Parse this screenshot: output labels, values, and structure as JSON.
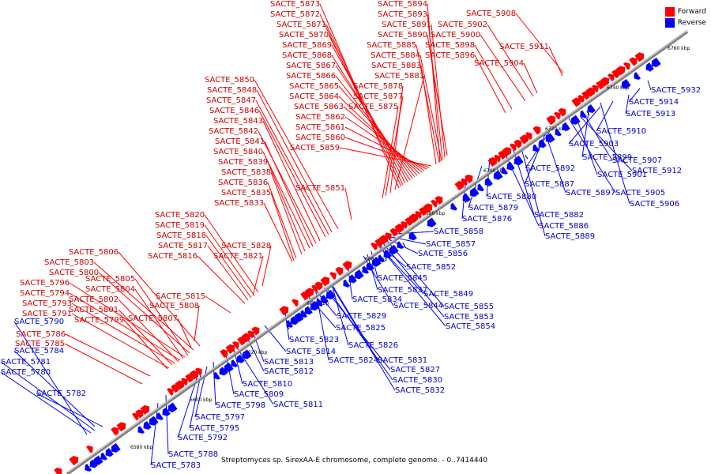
{
  "colors": {
    "forward": "#ff0000",
    "reverse": "#0000ff",
    "forward_label": "#cc0000",
    "reverse_label": "#0000cc",
    "axis": "#7f7f7f",
    "axis_highlight": "#d8d8d8"
  },
  "legend": {
    "forward": "Forward",
    "reverse": "Reverse"
  },
  "caption": "Streptomyces sp. SirexAA-E chromosome, complete genome. - 0..7414440",
  "axis_ticks": [
    "6580 kbp",
    "6600 kbp",
    "6620 kbp",
    "6640 kbp",
    "6660 kbp",
    "6680 kbp",
    "6700 kbp",
    "6720 kbp",
    "6740 kbp",
    "6760 kbp"
  ],
  "forward_genes": [
    "SACTE_5873",
    "SACTE_5872",
    "SACTE_5871",
    "SACTE_5870",
    "SACTE_5869",
    "SACTE_5868",
    "SACTE_5867",
    "SACTE_5866",
    "SACTE_5865",
    "SACTE_5864",
    "SACTE_5863",
    "SACTE_5862",
    "SACTE_5861",
    "SACTE_5860",
    "SACTE_5859",
    "SACTE_5894",
    "SACTE_5893",
    "SACTE_5891",
    "SACTE_5890",
    "SACTE_5885",
    "SACTE_5884",
    "SACTE_5883",
    "SACTE_5881",
    "SACTE_5878",
    "SACTE_5877",
    "SACTE_5875",
    "SACTE_5908",
    "SACTE_5902",
    "SACTE_5900",
    "SACTE_5898",
    "SACTE_5896",
    "SACTE_5911",
    "SACTE_5904",
    "SACTE_5850",
    "SACTE_5848",
    "SACTE_5847",
    "SACTE_5846",
    "SACTE_5843",
    "SACTE_5842",
    "SACTE_5841",
    "SACTE_5840",
    "SACTE_5839",
    "SACTE_5838",
    "SACTE_5836",
    "SACTE_5835",
    "SACTE_5833",
    "SACTE_5851",
    "SACTE_5820",
    "SACTE_5819",
    "SACTE_5818",
    "SACTE_5817",
    "SACTE_5816",
    "SACTE_5828",
    "SACTE_5821",
    "SACTE_5806",
    "SACTE_5803",
    "SACTE_5800",
    "SACTE_5805",
    "SACTE_5796",
    "SACTE_5804",
    "SACTE_5794",
    "SACTE_5802",
    "SACTE_5793",
    "SACTE_5801",
    "SACTE_5791",
    "SACTE_5799",
    "SACTE_5815",
    "SACTE_5808",
    "SACTE_5807",
    "SACTE_5786",
    "SACTE_5785"
  ],
  "reverse_genes": [
    "SACTE_5932",
    "SACTE_5914",
    "SACTE_5913",
    "SACTE_5910",
    "SACTE_5903",
    "SACTE_5899",
    "SACTE_5907",
    "SACTE_5901",
    "SACTE_5912",
    "SACTE_5892",
    "SACTE_5887",
    "SACTE_5897",
    "SACTE_5905",
    "SACTE_5906",
    "SACTE_5880",
    "SACTE_5879",
    "SACTE_5882",
    "SACTE_5876",
    "SACTE_5886",
    "SACTE_5889",
    "SACTE_5858",
    "SACTE_5857",
    "SACTE_5856",
    "SACTE_5852",
    "SACTE_5845",
    "SACTE_5837",
    "SACTE_5849",
    "SACTE_5834",
    "SACTE_5844",
    "SACTE_5855",
    "SACTE_5853",
    "SACTE_5854",
    "SACTE_5829",
    "SACTE_5825",
    "SACTE_5823",
    "SACTE_5826",
    "SACTE_5814",
    "SACTE_5824",
    "SACTE_5831",
    "SACTE_5813",
    "SACTE_5812",
    "SACTE_5827",
    "SACTE_5830",
    "SACTE_5832",
    "SACTE_5810",
    "SACTE_5809",
    "SACTE_5811",
    "SACTE_5798",
    "SACTE_5797",
    "SACTE_5795",
    "SACTE_5792",
    "SACTE_5788",
    "SACTE_5783",
    "SACTE_5790",
    "SACTE_5784",
    "SACTE_5781",
    "SACTE_5780",
    "SACTE_5782"
  ]
}
